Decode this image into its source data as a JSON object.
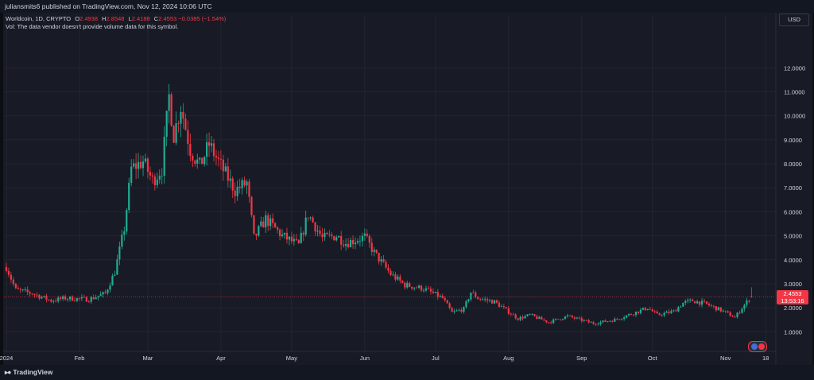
{
  "header": {
    "published": "juliansmits6 published on TradingView.com, Nov 12, 2024 10:06 UTC"
  },
  "legend": {
    "symbol": "Worldcoin, 1D, CRYPTO",
    "o_label": "O",
    "o_value": "2.4938",
    "h_label": "H",
    "h_value": "2.8548",
    "l_label": "L",
    "l_value": "2.4188",
    "c_label": "C",
    "c_value": "2.4553",
    "change": "−0.0385 (−1.54%)",
    "volume_note": "Vol: The data vendor doesn't provide volume data for this symbol."
  },
  "currency_button": "USD",
  "last_price": {
    "price": "2.4553",
    "countdown": "13:53:16"
  },
  "footer": {
    "brand": "TradingView"
  },
  "colors": {
    "up": "#22ab94",
    "down": "#f23645",
    "background": "#181b25",
    "grid": "#222632",
    "text": "#d1d4dc"
  },
  "chart_data": {
    "type": "candlestick",
    "title": "Worldcoin, 1D, CRYPTO",
    "y_axis_labels": [
      "12.0000",
      "11.0000",
      "10.0000",
      "9.0000",
      "8.0000",
      "7.0000",
      "6.0000",
      "5.0000",
      "4.0000",
      "3.0000",
      "2.0000",
      "1.0000"
    ],
    "y_ticks": [
      12,
      11,
      10,
      9,
      8,
      7,
      6,
      5,
      4,
      3,
      2,
      1
    ],
    "ylim": [
      0.35,
      13.5
    ],
    "x_labels": [
      "2024",
      "Feb",
      "Mar",
      "Apr",
      "May",
      "Jun",
      "Jul",
      "Aug",
      "Sep",
      "Oct",
      "Nov",
      "18"
    ],
    "x_label_dates": [
      "2024-01-01",
      "2024-02-01",
      "2024-03-01",
      "2024-04-01",
      "2024-05-01",
      "2024-06-01",
      "2024-07-01",
      "2024-08-01",
      "2024-09-01",
      "2024-10-01",
      "2024-11-01",
      "2024-11-18"
    ],
    "x_range": [
      "2023-12-31",
      "2024-11-22"
    ],
    "current_price": 2.4553,
    "anchors": [
      [
        "2024-01-01",
        3.7
      ],
      [
        "2024-01-05",
        2.75
      ],
      [
        "2024-01-12",
        2.6
      ],
      [
        "2024-01-20",
        2.3
      ],
      [
        "2024-01-26",
        2.4
      ],
      [
        "2024-02-05",
        2.35
      ],
      [
        "2024-02-12",
        2.6
      ],
      [
        "2024-02-16",
        3.5
      ],
      [
        "2024-02-20",
        5.3
      ],
      [
        "2024-02-23",
        7.8
      ],
      [
        "2024-02-28",
        8.1
      ],
      [
        "2024-03-03",
        7.3
      ],
      [
        "2024-03-07",
        7.8
      ],
      [
        "2024-03-10",
        10.8
      ],
      [
        "2024-03-12",
        9.2
      ],
      [
        "2024-03-15",
        10.4
      ],
      [
        "2024-03-19",
        8.6
      ],
      [
        "2024-03-23",
        7.9
      ],
      [
        "2024-03-27",
        8.8
      ],
      [
        "2024-04-01",
        7.9
      ],
      [
        "2024-04-07",
        6.9
      ],
      [
        "2024-04-12",
        7.2
      ],
      [
        "2024-04-15",
        4.9
      ],
      [
        "2024-04-20",
        5.7
      ],
      [
        "2024-04-27",
        5.0
      ],
      [
        "2024-05-04",
        4.6
      ],
      [
        "2024-05-08",
        5.9
      ],
      [
        "2024-05-14",
        4.9
      ],
      [
        "2024-05-20",
        5.0
      ],
      [
        "2024-05-24",
        4.7
      ],
      [
        "2024-06-01",
        4.95
      ],
      [
        "2024-06-05",
        4.3
      ],
      [
        "2024-06-12",
        3.4
      ],
      [
        "2024-06-18",
        2.95
      ],
      [
        "2024-06-26",
        2.8
      ],
      [
        "2024-07-04",
        2.4
      ],
      [
        "2024-07-08",
        1.8
      ],
      [
        "2024-07-13",
        1.95
      ],
      [
        "2024-07-16",
        2.65
      ],
      [
        "2024-07-19",
        2.4
      ],
      [
        "2024-07-26",
        2.25
      ],
      [
        "2024-08-05",
        1.55
      ],
      [
        "2024-08-10",
        1.7
      ],
      [
        "2024-08-18",
        1.4
      ],
      [
        "2024-08-26",
        1.65
      ],
      [
        "2024-09-06",
        1.35
      ],
      [
        "2024-09-15",
        1.5
      ],
      [
        "2024-09-25",
        1.85
      ],
      [
        "2024-09-29",
        2.0
      ],
      [
        "2024-10-03",
        1.7
      ],
      [
        "2024-10-10",
        1.85
      ],
      [
        "2024-10-14",
        2.2
      ],
      [
        "2024-10-18",
        2.3
      ],
      [
        "2024-10-24",
        2.15
      ],
      [
        "2024-10-30",
        1.9
      ],
      [
        "2024-11-05",
        1.6
      ],
      [
        "2024-11-08",
        2.0
      ],
      [
        "2024-11-11",
        2.35
      ],
      [
        "2024-11-12",
        2.4553
      ]
    ]
  }
}
